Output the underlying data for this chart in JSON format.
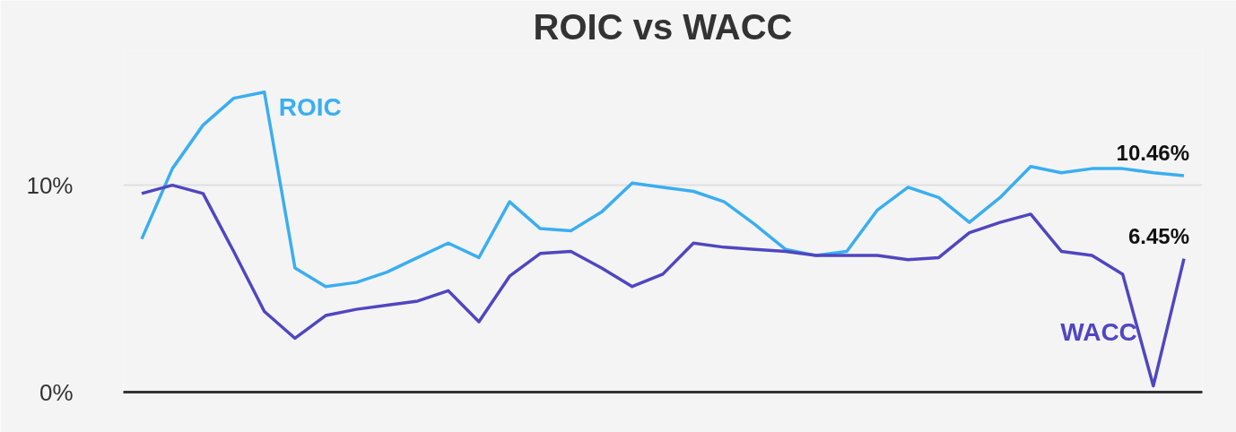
{
  "chart_data": {
    "type": "line",
    "title": "ROIC vs WACC",
    "categories": [
      null,
      null,
      null,
      null,
      null,
      null,
      null,
      null,
      null,
      null,
      null,
      null,
      null,
      null,
      null,
      null,
      null,
      null,
      null,
      null,
      null,
      null,
      null,
      null,
      null,
      null,
      null,
      null,
      null,
      null,
      null,
      null,
      null,
      null,
      null
    ],
    "series": [
      {
        "name": "ROIC",
        "color": "#3aaef0",
        "values": [
          7.4,
          10.8,
          12.9,
          14.2,
          14.5,
          6.0,
          5.1,
          5.3,
          5.8,
          6.5,
          7.2,
          6.5,
          9.2,
          7.9,
          7.8,
          8.7,
          10.1,
          9.9,
          9.7,
          9.2,
          8.1,
          6.9,
          6.6,
          6.8,
          8.8,
          9.9,
          9.4,
          8.2,
          9.4,
          10.9,
          10.6,
          10.8,
          10.8,
          10.6,
          10.46
        ],
        "value_labels": [
          null,
          null,
          null,
          null,
          null,
          null,
          null,
          null,
          null,
          null,
          null,
          null,
          null,
          null,
          null,
          null,
          null,
          null,
          null,
          null,
          null,
          null,
          null,
          null,
          null,
          null,
          null,
          null,
          null,
          null,
          null,
          null,
          null,
          null,
          "10.46%"
        ]
      },
      {
        "name": "WACC",
        "color": "#5046c0",
        "values": [
          9.6,
          10.0,
          9.6,
          6.8,
          3.9,
          2.6,
          3.7,
          4.0,
          4.2,
          4.4,
          4.9,
          3.4,
          5.6,
          6.7,
          6.8,
          6.0,
          5.1,
          5.7,
          7.2,
          7.0,
          6.9,
          6.8,
          6.6,
          6.6,
          6.6,
          6.4,
          6.5,
          7.7,
          8.2,
          8.6,
          6.8,
          6.6,
          5.7,
          0.3,
          6.45
        ],
        "value_labels": [
          null,
          null,
          null,
          null,
          null,
          null,
          null,
          null,
          null,
          null,
          null,
          null,
          null,
          null,
          null,
          null,
          null,
          null,
          null,
          null,
          null,
          null,
          null,
          null,
          null,
          null,
          null,
          null,
          null,
          null,
          null,
          null,
          null,
          null,
          "6.45%"
        ]
      }
    ],
    "ylim": [
      0,
      16.5
    ],
    "yticks": [
      {
        "value": 0,
        "label": "0%"
      },
      {
        "value": 10,
        "label": "10%"
      }
    ],
    "grid": "y",
    "tick_labels": "y",
    "marker": "none",
    "line_style": "solid"
  }
}
